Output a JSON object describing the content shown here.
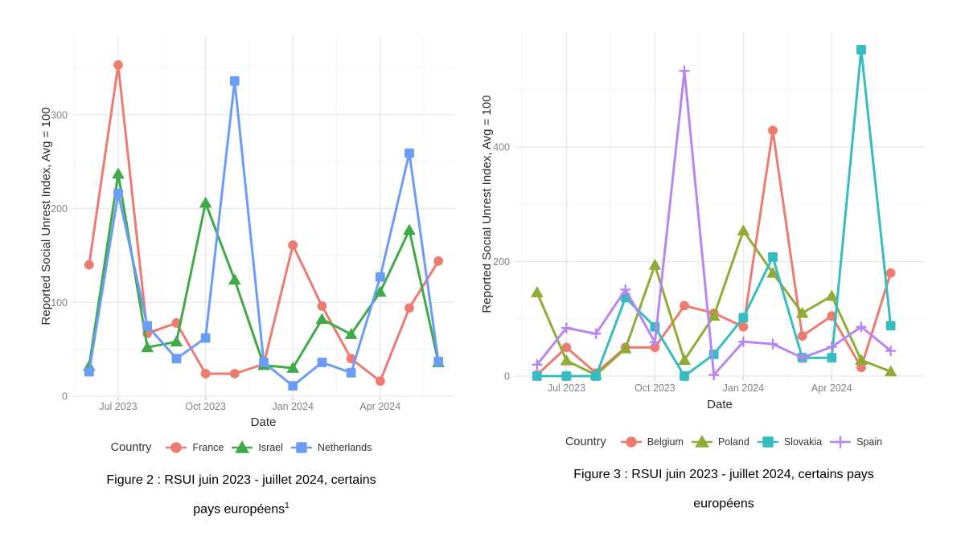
{
  "page_background": "#ffffff",
  "chart_data": [
    {
      "type": "line",
      "figure_label": "Figure 2",
      "caption_lines": [
        "Figure 2 : RSUI juin 2023 - juillet 2024, certains",
        "pays européens"
      ],
      "caption_sup": "1",
      "xlabel": "Date",
      "ylabel": "Reported Social Unrest Index, Avg = 100",
      "legend_title": "Country",
      "legend_position": "bottom",
      "grid": true,
      "x": [
        "Jun 2023",
        "Jul 2023",
        "Aug 2023",
        "Sep 2023",
        "Oct 2023",
        "Nov 2023",
        "Dec 2023",
        "Jan 2024",
        "Feb 2024",
        "Mar 2024",
        "Apr 2024",
        "May 2024",
        "Jun 2024"
      ],
      "x_tick_labels": [
        "Jul 2023",
        "Oct 2023",
        "Jan 2024",
        "Apr 2024"
      ],
      "y_ticks": [
        0,
        100,
        200,
        300
      ],
      "y_minor_ticks": [
        50,
        150,
        250,
        350
      ],
      "ylim": [
        0,
        380
      ],
      "series": [
        {
          "name": "France",
          "color": "#EE7B70",
          "marker": "circle",
          "values": [
            140,
            353,
            67,
            78,
            24,
            24,
            34,
            161,
            96,
            40,
            16,
            94,
            144
          ]
        },
        {
          "name": "Israel",
          "color": "#3FAA47",
          "marker": "triangle",
          "values": [
            32,
            237,
            52,
            58,
            206,
            124,
            33,
            30,
            82,
            66,
            111,
            177,
            36
          ]
        },
        {
          "name": "Netherlands",
          "color": "#6B9CF7",
          "marker": "square",
          "values": [
            26,
            216,
            75,
            40,
            62,
            336,
            36,
            11,
            36,
            25,
            127,
            259,
            37
          ]
        }
      ]
    },
    {
      "type": "line",
      "figure_label": "Figure 3",
      "caption_lines": [
        "Figure 3 : RSUI juin 2023 - juillet 2024, certains pays",
        "européens"
      ],
      "caption_sup": "",
      "xlabel": "Date",
      "ylabel": "Reported Social Unrest Index, Avg = 100",
      "legend_title": "Country",
      "legend_position": "bottom",
      "grid": true,
      "x": [
        "Jun 2023",
        "Jul 2023",
        "Aug 2023",
        "Sep 2023",
        "Oct 2023",
        "Nov 2023",
        "Dec 2023",
        "Jan 2024",
        "Feb 2024",
        "Mar 2024",
        "Apr 2024",
        "May 2024",
        "Jun 2024"
      ],
      "x_tick_labels": [
        "Jul 2023",
        "Oct 2023",
        "Jan 2024",
        "Apr 2024"
      ],
      "y_ticks": [
        0,
        200,
        400
      ],
      "y_minor_ticks": [
        100,
        300,
        500
      ],
      "ylim": [
        0,
        575
      ],
      "series": [
        {
          "name": "Belgium",
          "color": "#EE7B70",
          "marker": "circle",
          "values": [
            2,
            50,
            5,
            50,
            50,
            123,
            110,
            86,
            429,
            70,
            105,
            15,
            180
          ]
        },
        {
          "name": "Poland",
          "color": "#8FAC36",
          "marker": "triangle",
          "values": [
            146,
            27,
            2,
            48,
            194,
            28,
            105,
            254,
            180,
            110,
            140,
            28,
            8
          ]
        },
        {
          "name": "Slovakia",
          "color": "#35BDC1",
          "marker": "square",
          "values": [
            0,
            0,
            0,
            137,
            86,
            0,
            38,
            102,
            208,
            32,
            32,
            570,
            88
          ]
        },
        {
          "name": "Spain",
          "color": "#B886F2",
          "marker": "plus",
          "values": [
            20,
            84,
            74,
            151,
            59,
            533,
            2,
            60,
            56,
            32,
            51,
            86,
            44
          ]
        }
      ]
    }
  ]
}
